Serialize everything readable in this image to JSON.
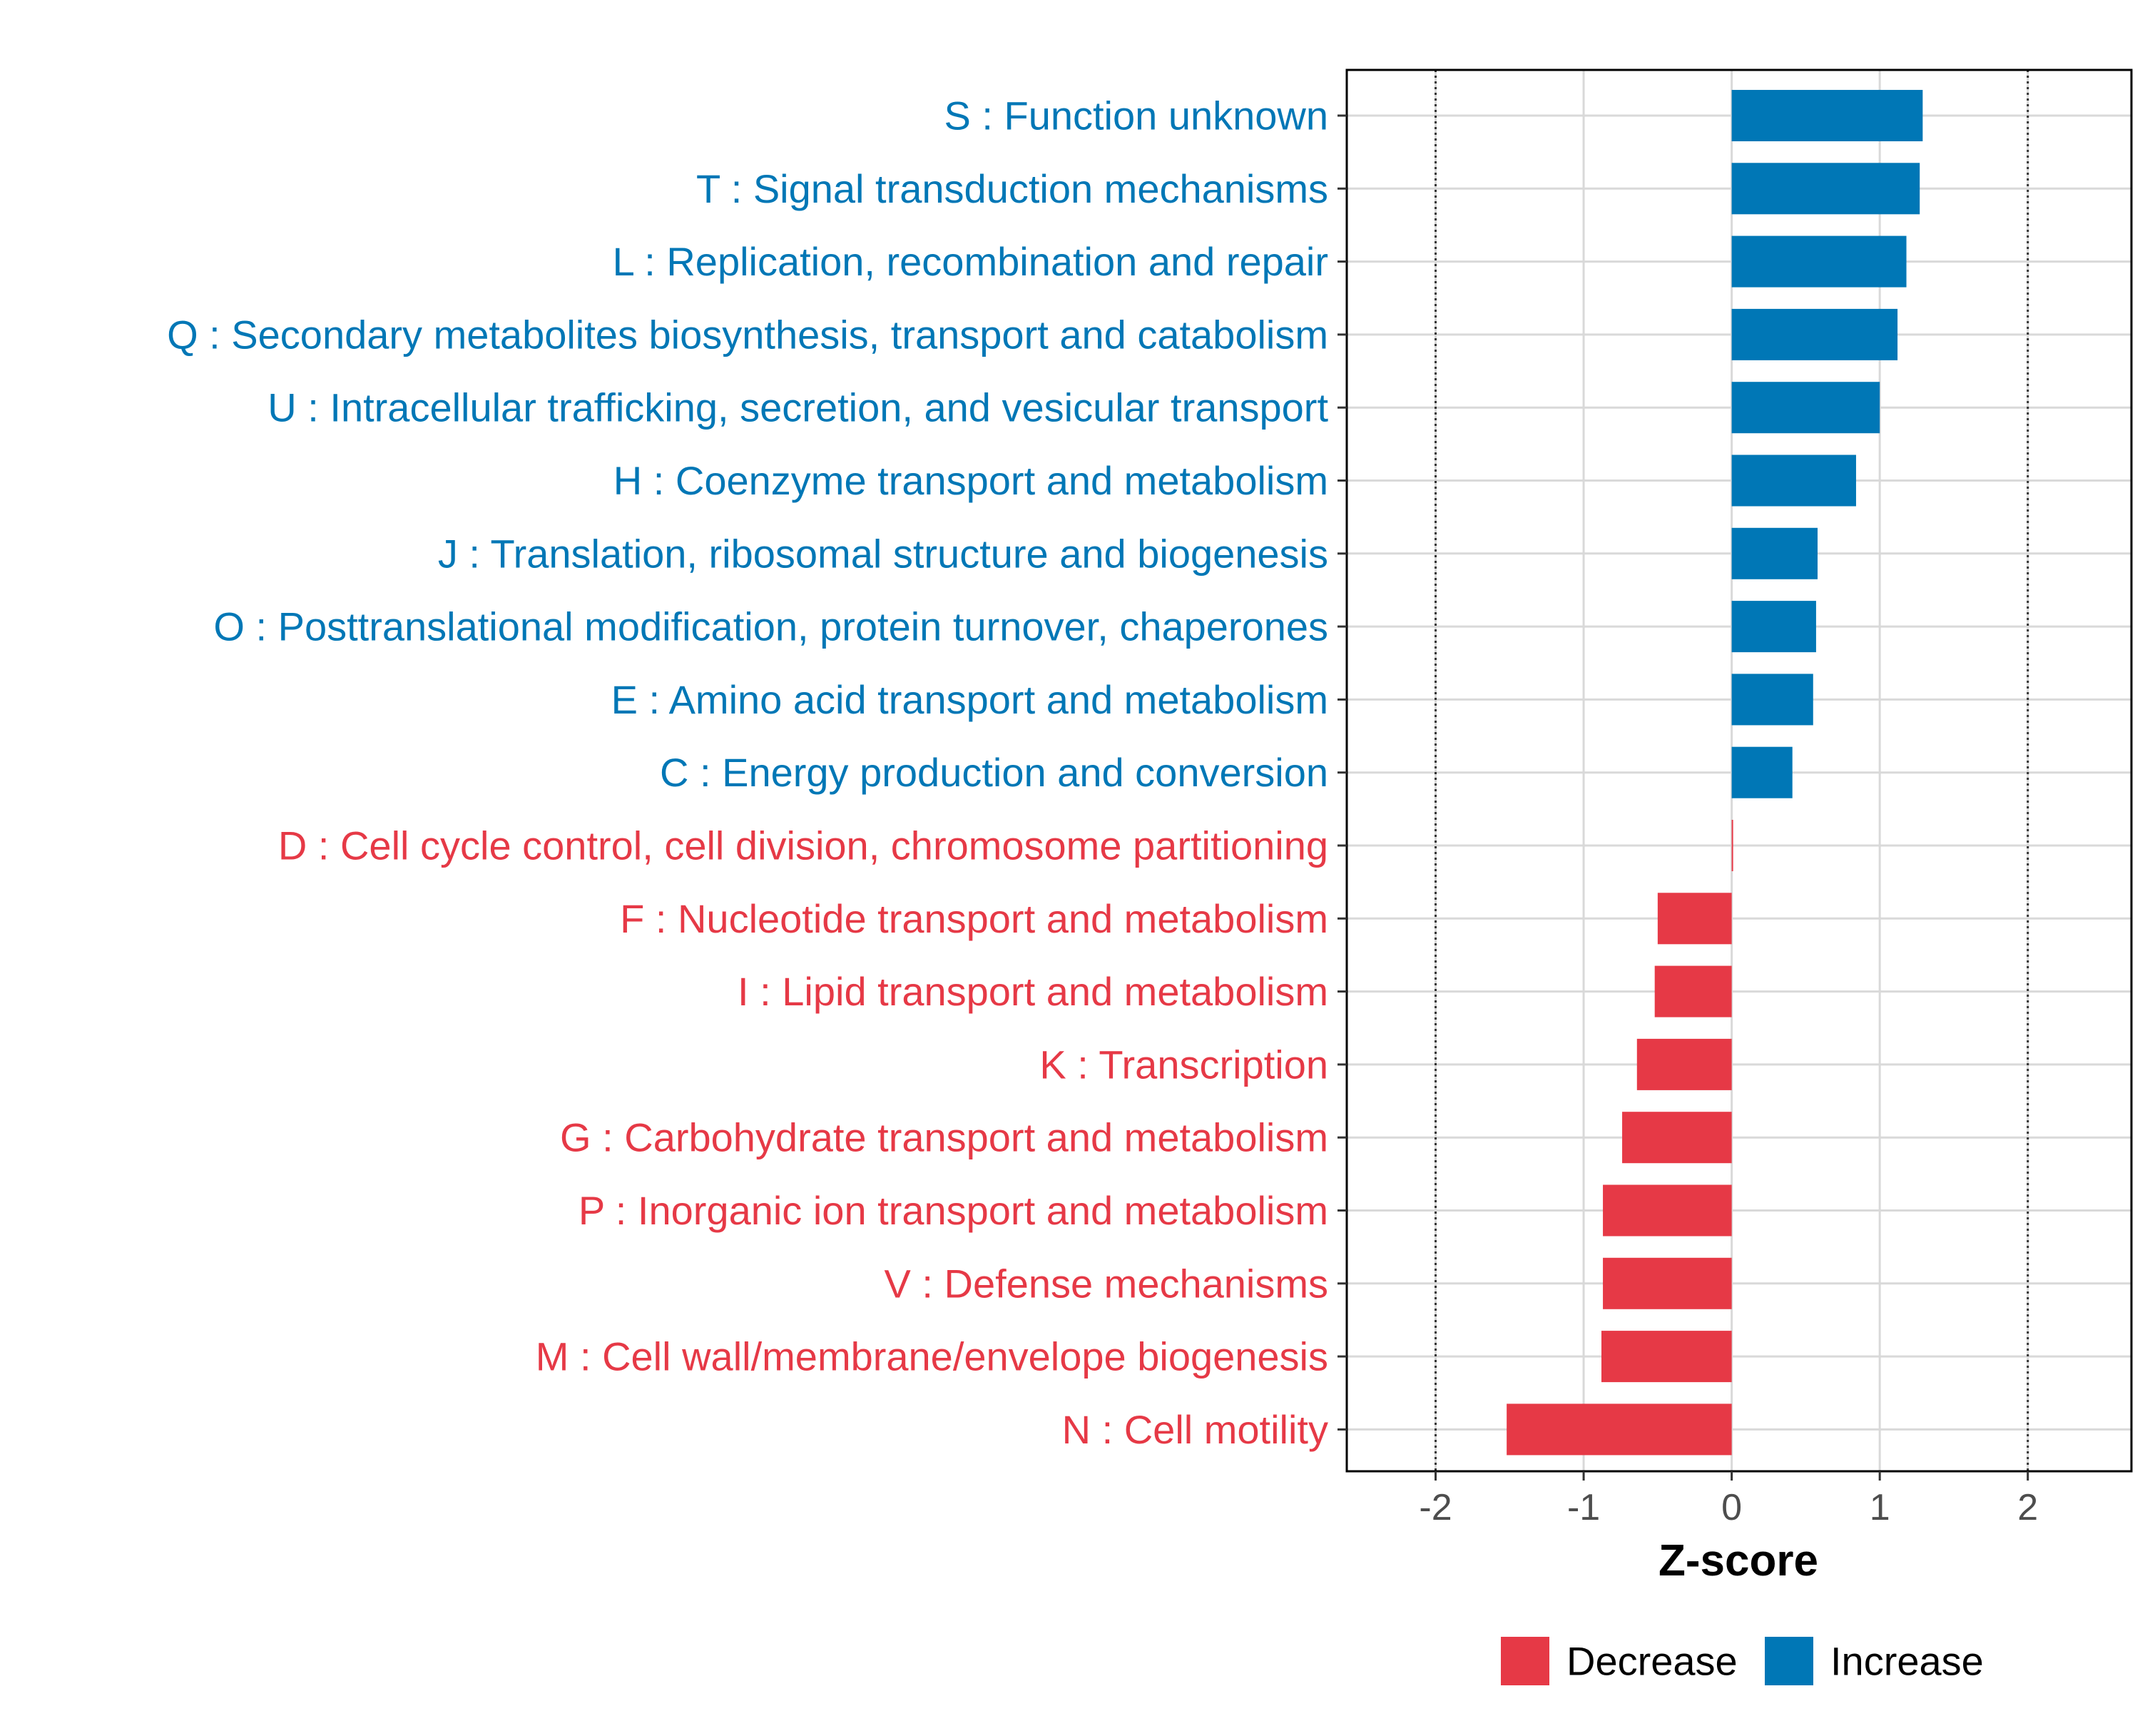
{
  "chart_data": {
    "type": "bar",
    "orientation": "horizontal",
    "title": "",
    "xlabel": "Z-score",
    "ylabel": "",
    "xlim": [
      -2.6,
      2.7
    ],
    "x_ticks": [
      "-2",
      "-1",
      "0",
      "1",
      "2"
    ],
    "x_tick_values": [
      -2,
      -1,
      0,
      1,
      2
    ],
    "reference_lines": [
      -2,
      2
    ],
    "grid": true,
    "legend_position": "bottom",
    "colors": {
      "Decrease": "#E63946",
      "Increase": "#0077B6"
    },
    "legend": [
      {
        "label": "Decrease",
        "color": "#E63946"
      },
      {
        "label": "Increase",
        "color": "#0077B6"
      }
    ],
    "categories": [
      {
        "label": "S : Function unknown",
        "value": 1.29,
        "group": "Increase"
      },
      {
        "label": "T : Signal transduction mechanisms",
        "value": 1.27,
        "group": "Increase"
      },
      {
        "label": "L : Replication, recombination and repair",
        "value": 1.18,
        "group": "Increase"
      },
      {
        "label": "Q : Secondary metabolites biosynthesis, transport and catabolism",
        "value": 1.12,
        "group": "Increase"
      },
      {
        "label": "U : Intracellular trafficking, secretion, and vesicular transport",
        "value": 1.0,
        "group": "Increase"
      },
      {
        "label": "H : Coenzyme transport and metabolism",
        "value": 0.84,
        "group": "Increase"
      },
      {
        "label": "J : Translation, ribosomal structure and biogenesis",
        "value": 0.58,
        "group": "Increase"
      },
      {
        "label": "O : Posttranslational modification, protein turnover, chaperones",
        "value": 0.57,
        "group": "Increase"
      },
      {
        "label": "E : Amino acid transport and metabolism",
        "value": 0.55,
        "group": "Increase"
      },
      {
        "label": "C : Energy production and conversion",
        "value": 0.41,
        "group": "Increase"
      },
      {
        "label": "D : Cell cycle control, cell division, chromosome partitioning",
        "value": 0.0,
        "group": "Decrease"
      },
      {
        "label": "F : Nucleotide transport and metabolism",
        "value": -0.5,
        "group": "Decrease"
      },
      {
        "label": "I : Lipid transport and metabolism",
        "value": -0.52,
        "group": "Decrease"
      },
      {
        "label": "K : Transcription",
        "value": -0.64,
        "group": "Decrease"
      },
      {
        "label": "G : Carbohydrate transport and metabolism",
        "value": -0.74,
        "group": "Decrease"
      },
      {
        "label": "P : Inorganic ion transport and metabolism",
        "value": -0.87,
        "group": "Decrease"
      },
      {
        "label": "V : Defense mechanisms",
        "value": -0.87,
        "group": "Decrease"
      },
      {
        "label": "M : Cell wall/membrane/envelope biogenesis",
        "value": -0.88,
        "group": "Decrease"
      },
      {
        "label": "N : Cell motility",
        "value": -1.52,
        "group": "Decrease"
      }
    ]
  }
}
